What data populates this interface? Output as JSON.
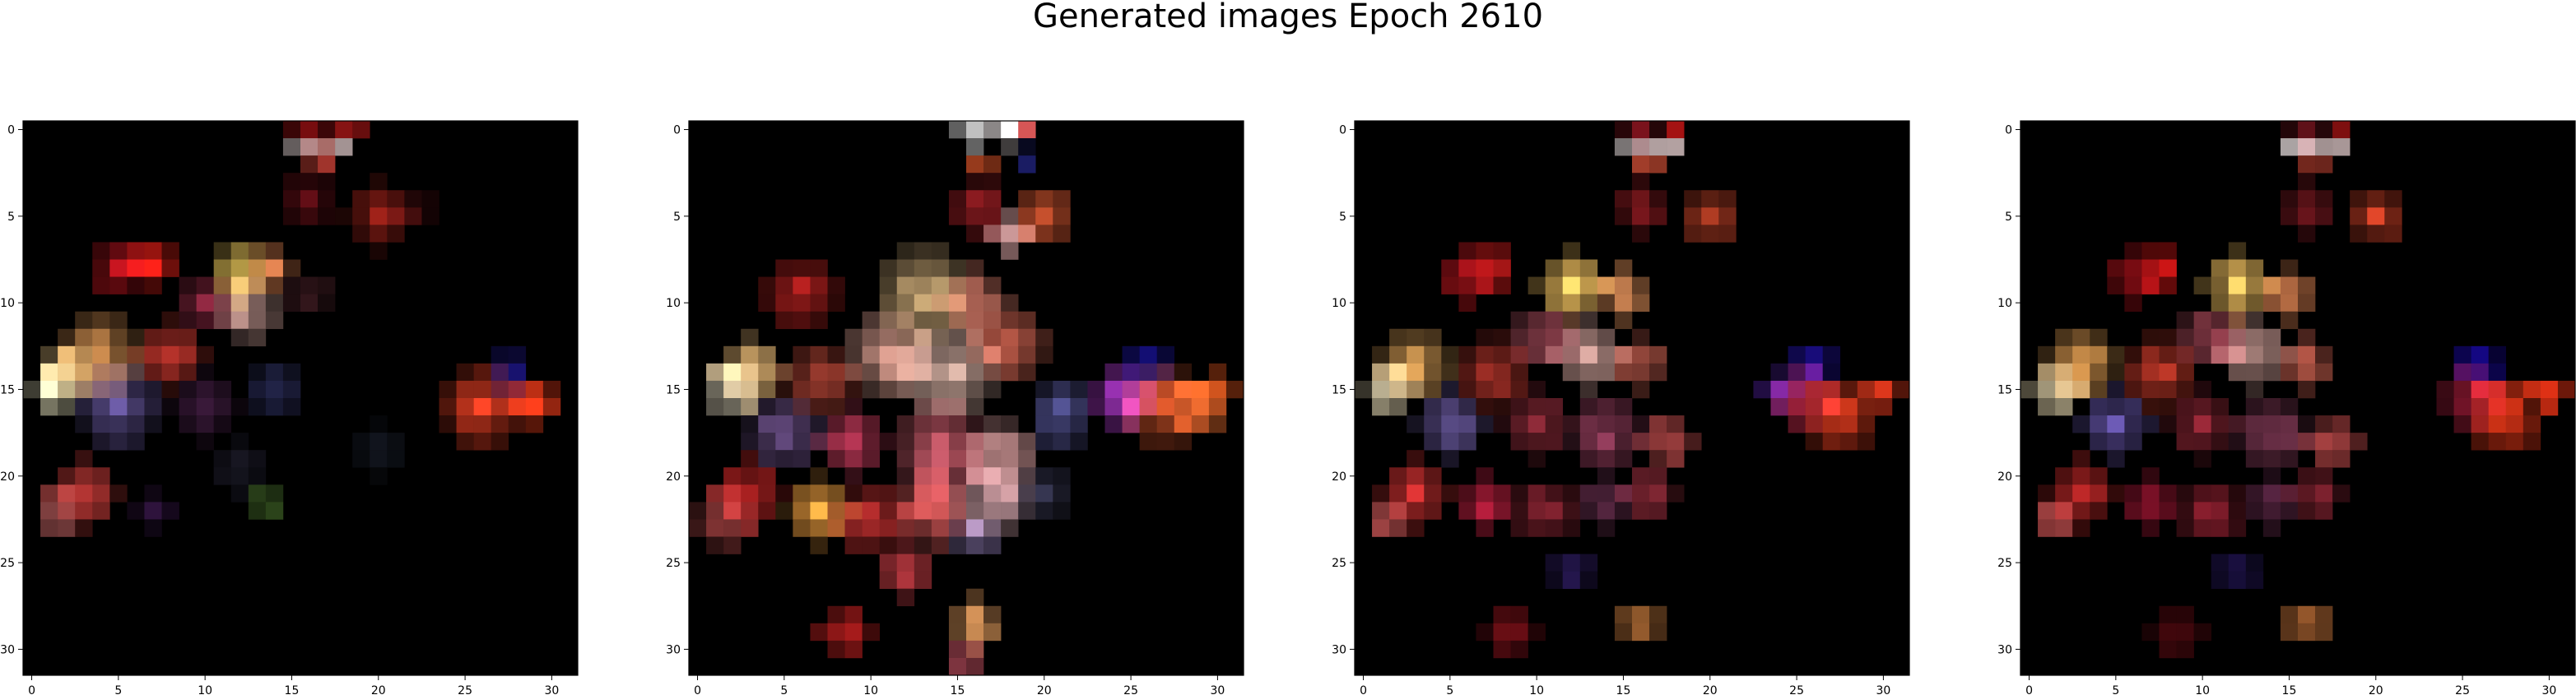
{
  "figure_title": "Generated images Epoch 2610",
  "chart_data": [
    {
      "type": "heatmap",
      "title": "",
      "grid": false,
      "xlim": [
        -0.5,
        31.5
      ],
      "ylim": [
        31.5,
        -0.5
      ],
      "xticks": [
        0,
        5,
        10,
        15,
        20,
        25,
        30
      ],
      "yticks": [
        0,
        5,
        10,
        15,
        20,
        25,
        30
      ],
      "size": [
        32,
        32
      ],
      "background": "#000000",
      "blobs": [
        {
          "x": 16.5,
          "y": 0.5,
          "r": 0.9,
          "color": "#8b0f12"
        },
        {
          "x": 18.8,
          "y": 0.2,
          "r": 0.6,
          "color": "#d81e1e"
        },
        {
          "x": 16.2,
          "y": 1.5,
          "r": 0.6,
          "color": "#f0e0e0"
        },
        {
          "x": 18.2,
          "y": 1.5,
          "r": 0.6,
          "color": "#f1d9d9"
        },
        {
          "x": 17.2,
          "y": 2.2,
          "r": 0.6,
          "color": "#d9473b"
        },
        {
          "x": 16.5,
          "y": 4.5,
          "r": 1.4,
          "color": "#5a0d14"
        },
        {
          "x": 20.5,
          "y": 5.5,
          "r": 1.8,
          "color": "#8a1d16"
        },
        {
          "x": 22.5,
          "y": 5.0,
          "r": 1.0,
          "color": "#3a0a0c"
        },
        {
          "x": 5.5,
          "y": 8.5,
          "r": 1.6,
          "color": "#a2111a"
        },
        {
          "x": 7.5,
          "y": 8.3,
          "r": 1.2,
          "color": "#f02018"
        },
        {
          "x": 12.5,
          "y": 8.8,
          "r": 1.6,
          "color": "#f3cf5e"
        },
        {
          "x": 14.2,
          "y": 8.7,
          "r": 1.2,
          "color": "#e48552"
        },
        {
          "x": 10.5,
          "y": 10.5,
          "r": 1.4,
          "color": "#7a2238"
        },
        {
          "x": 13.0,
          "y": 11.0,
          "r": 1.6,
          "color": "#d9a8a0"
        },
        {
          "x": 16.5,
          "y": 10.0,
          "r": 1.2,
          "color": "#451e25"
        },
        {
          "x": 4.5,
          "y": 13.5,
          "r": 2.2,
          "color": "#eba05a"
        },
        {
          "x": 2.5,
          "y": 14.5,
          "r": 1.6,
          "color": "#f3d08a"
        },
        {
          "x": 1.8,
          "y": 15.5,
          "r": 1.2,
          "color": "#f5f0c9"
        },
        {
          "x": 8.5,
          "y": 13.5,
          "r": 2.0,
          "color": "#c3362d"
        },
        {
          "x": 5.5,
          "y": 16.5,
          "r": 2.2,
          "color": "#6a5aa3"
        },
        {
          "x": 10.5,
          "y": 16.5,
          "r": 1.8,
          "color": "#3b1a3b"
        },
        {
          "x": 14.5,
          "y": 15.5,
          "r": 1.6,
          "color": "#262850"
        },
        {
          "x": 26.5,
          "y": 16.5,
          "r": 2.3,
          "color": "#e03d22"
        },
        {
          "x": 29.5,
          "y": 16.2,
          "r": 1.4,
          "color": "#f03c1a"
        },
        {
          "x": 28.0,
          "y": 14.5,
          "r": 1.0,
          "color": "#1c1580"
        },
        {
          "x": 3.5,
          "y": 21.5,
          "r": 2.0,
          "color": "#c53b38"
        },
        {
          "x": 2.0,
          "y": 22.8,
          "r": 1.2,
          "color": "#d46b6b"
        },
        {
          "x": 7.5,
          "y": 22.5,
          "r": 1.2,
          "color": "#281034"
        },
        {
          "x": 12.5,
          "y": 20.0,
          "r": 1.6,
          "color": "#1b1a28"
        },
        {
          "x": 14.0,
          "y": 22.0,
          "r": 0.6,
          "color": "#4f7a30"
        },
        {
          "x": 20.5,
          "y": 19.0,
          "r": 1.4,
          "color": "#141822"
        }
      ]
    },
    {
      "type": "heatmap",
      "title": "",
      "grid": false,
      "xlim": [
        -0.5,
        31.5
      ],
      "ylim": [
        31.5,
        -0.5
      ],
      "xticks": [
        0,
        5,
        10,
        15,
        20,
        25,
        30
      ],
      "yticks": [
        0,
        5,
        10,
        15,
        20,
        25,
        30
      ],
      "size": [
        32,
        32
      ],
      "background": "#000000",
      "blobs": [
        {
          "x": 16.5,
          "y": 0.5,
          "r": 0.8,
          "color": "#ffffff"
        },
        {
          "x": 18.5,
          "y": 0.5,
          "r": 0.8,
          "color": "#f4e8e8"
        },
        {
          "x": 19.5,
          "y": 0.2,
          "r": 0.5,
          "color": "#d01818"
        },
        {
          "x": 19.5,
          "y": 2.3,
          "r": 0.6,
          "color": "#1c1e6a"
        },
        {
          "x": 17.0,
          "y": 2.4,
          "r": 0.6,
          "color": "#ea5a2b"
        },
        {
          "x": 16.8,
          "y": 5.0,
          "r": 1.5,
          "color": "#9d1e24"
        },
        {
          "x": 20.5,
          "y": 5.5,
          "r": 1.6,
          "color": "#e05b33"
        },
        {
          "x": 18.5,
          "y": 6.5,
          "r": 1.2,
          "color": "#d9a3a3"
        },
        {
          "x": 6.5,
          "y": 10.0,
          "r": 2.0,
          "color": "#b82120"
        },
        {
          "x": 13.5,
          "y": 10.0,
          "r": 2.6,
          "color": "#efc88c"
        },
        {
          "x": 16.5,
          "y": 10.5,
          "r": 2.0,
          "color": "#d97c6a"
        },
        {
          "x": 11.5,
          "y": 13.5,
          "r": 2.4,
          "color": "#e8a898"
        },
        {
          "x": 15.0,
          "y": 14.5,
          "r": 2.8,
          "color": "#d9b3a6"
        },
        {
          "x": 18.5,
          "y": 13.0,
          "r": 2.0,
          "color": "#e8705a"
        },
        {
          "x": 3.5,
          "y": 14.5,
          "r": 2.0,
          "color": "#f0c07a"
        },
        {
          "x": 2.5,
          "y": 15.5,
          "r": 1.5,
          "color": "#f8eed2"
        },
        {
          "x": 7.5,
          "y": 15.0,
          "r": 2.0,
          "color": "#c24a3a"
        },
        {
          "x": 5.5,
          "y": 18.0,
          "r": 2.0,
          "color": "#7a5a9a"
        },
        {
          "x": 9.5,
          "y": 18.5,
          "r": 2.0,
          "color": "#c23a5a"
        },
        {
          "x": 14.5,
          "y": 19.0,
          "r": 2.6,
          "color": "#d36070"
        },
        {
          "x": 18.0,
          "y": 19.5,
          "r": 2.2,
          "color": "#e8a8a8"
        },
        {
          "x": 21.5,
          "y": 17.0,
          "r": 1.8,
          "color": "#5a5aa0"
        },
        {
          "x": 25.0,
          "y": 16.0,
          "r": 1.6,
          "color": "#b23ad0"
        },
        {
          "x": 27.5,
          "y": 16.5,
          "r": 2.2,
          "color": "#f06030"
        },
        {
          "x": 29.5,
          "y": 16.5,
          "r": 1.6,
          "color": "#f07030"
        },
        {
          "x": 26.5,
          "y": 14.0,
          "r": 1.0,
          "color": "#1a14a0"
        },
        {
          "x": 30.5,
          "y": 15.5,
          "r": 0.8,
          "color": "#ff6020"
        },
        {
          "x": 3.5,
          "y": 21.5,
          "r": 2.0,
          "color": "#d02828"
        },
        {
          "x": 2.0,
          "y": 23.0,
          "r": 1.4,
          "color": "#e05a5a"
        },
        {
          "x": 7.5,
          "y": 22.5,
          "r": 1.8,
          "color": "#f0a040"
        },
        {
          "x": 10.5,
          "y": 23.0,
          "r": 2.0,
          "color": "#c23030"
        },
        {
          "x": 14.0,
          "y": 22.5,
          "r": 2.2,
          "color": "#e86060"
        },
        {
          "x": 17.5,
          "y": 22.0,
          "r": 2.0,
          "color": "#d8a8b0"
        },
        {
          "x": 20.5,
          "y": 21.5,
          "r": 1.4,
          "color": "#303048"
        },
        {
          "x": 12.5,
          "y": 26.0,
          "r": 1.6,
          "color": "#d04048"
        },
        {
          "x": 16.5,
          "y": 24.0,
          "r": 1.2,
          "color": "#7a6a9a"
        },
        {
          "x": 9.0,
          "y": 29.5,
          "r": 1.6,
          "color": "#c02020"
        },
        {
          "x": 16.5,
          "y": 29.0,
          "r": 1.5,
          "color": "#e8a060"
        },
        {
          "x": 16.0,
          "y": 31.0,
          "r": 0.8,
          "color": "#c05060"
        }
      ]
    },
    {
      "type": "heatmap",
      "title": "",
      "grid": false,
      "xlim": [
        -0.5,
        31.5
      ],
      "ylim": [
        31.5,
        -0.5
      ],
      "xticks": [
        0,
        5,
        10,
        15,
        20,
        25,
        30
      ],
      "yticks": [
        0,
        5,
        10,
        15,
        20,
        25,
        30
      ],
      "size": [
        32,
        32
      ],
      "background": "#000000",
      "blobs": [
        {
          "x": 16.5,
          "y": 0.5,
          "r": 0.8,
          "color": "#6a1018"
        },
        {
          "x": 18.5,
          "y": 0.2,
          "r": 0.5,
          "color": "#d81818"
        },
        {
          "x": 16.0,
          "y": 1.5,
          "r": 0.6,
          "color": "#f6ecec"
        },
        {
          "x": 18.0,
          "y": 1.5,
          "r": 0.6,
          "color": "#f2dada"
        },
        {
          "x": 17.0,
          "y": 2.3,
          "r": 0.6,
          "color": "#e0553a"
        },
        {
          "x": 16.5,
          "y": 5.0,
          "r": 1.4,
          "color": "#8a1a20"
        },
        {
          "x": 20.5,
          "y": 5.5,
          "r": 1.6,
          "color": "#c84428"
        },
        {
          "x": 6.5,
          "y": 9.0,
          "r": 1.6,
          "color": "#b0141c"
        },
        {
          "x": 8.0,
          "y": 8.5,
          "r": 1.0,
          "color": "#f02020"
        },
        {
          "x": 12.5,
          "y": 9.5,
          "r": 2.0,
          "color": "#f0c060"
        },
        {
          "x": 15.5,
          "y": 10.0,
          "r": 1.6,
          "color": "#e0905a"
        },
        {
          "x": 11.0,
          "y": 12.5,
          "r": 1.8,
          "color": "#b05060"
        },
        {
          "x": 13.5,
          "y": 13.5,
          "r": 2.0,
          "color": "#d8a8a0"
        },
        {
          "x": 16.5,
          "y": 14.0,
          "r": 1.6,
          "color": "#c86050"
        },
        {
          "x": 3.5,
          "y": 14.0,
          "r": 2.0,
          "color": "#f0b060"
        },
        {
          "x": 2.0,
          "y": 15.5,
          "r": 1.4,
          "color": "#f6e8c0"
        },
        {
          "x": 8.0,
          "y": 14.5,
          "r": 2.0,
          "color": "#c83a30"
        },
        {
          "x": 5.5,
          "y": 17.5,
          "r": 2.0,
          "color": "#6a5aa0"
        },
        {
          "x": 10.5,
          "y": 17.5,
          "r": 1.8,
          "color": "#a03040"
        },
        {
          "x": 14.5,
          "y": 18.0,
          "r": 2.0,
          "color": "#9a4060"
        },
        {
          "x": 18.0,
          "y": 18.5,
          "r": 1.6,
          "color": "#c85050"
        },
        {
          "x": 26.0,
          "y": 16.0,
          "r": 1.8,
          "color": "#c02848"
        },
        {
          "x": 28.0,
          "y": 17.0,
          "r": 2.2,
          "color": "#f04020"
        },
        {
          "x": 30.5,
          "y": 15.8,
          "r": 1.0,
          "color": "#ff4020"
        },
        {
          "x": 26.5,
          "y": 14.0,
          "r": 1.2,
          "color": "#2010a0"
        },
        {
          "x": 24.5,
          "y": 15.5,
          "r": 0.8,
          "color": "#5020a0"
        },
        {
          "x": 3.5,
          "y": 21.5,
          "r": 2.0,
          "color": "#c83030"
        },
        {
          "x": 2.0,
          "y": 23.0,
          "r": 1.2,
          "color": "#e06060"
        },
        {
          "x": 7.5,
          "y": 22.0,
          "r": 1.6,
          "color": "#c02040"
        },
        {
          "x": 11.0,
          "y": 22.5,
          "r": 1.8,
          "color": "#9a2838"
        },
        {
          "x": 14.5,
          "y": 22.0,
          "r": 1.6,
          "color": "#6a3050"
        },
        {
          "x": 17.0,
          "y": 21.5,
          "r": 1.4,
          "color": "#a03040"
        },
        {
          "x": 12.5,
          "y": 26.0,
          "r": 1.2,
          "color": "#2a1a5a"
        },
        {
          "x": 9.0,
          "y": 29.5,
          "r": 1.4,
          "color": "#7a1018"
        },
        {
          "x": 16.5,
          "y": 29.0,
          "r": 1.2,
          "color": "#d08040"
        }
      ]
    },
    {
      "type": "heatmap",
      "title": "",
      "grid": false,
      "xlim": [
        -0.5,
        31.5
      ],
      "ylim": [
        31.5,
        -0.5
      ],
      "xticks": [
        0,
        5,
        10,
        15,
        20,
        25,
        30
      ],
      "yticks": [
        0,
        5,
        10,
        15,
        20,
        25,
        30
      ],
      "size": [
        32,
        32
      ],
      "background": "#000000",
      "blobs": [
        {
          "x": 16.5,
          "y": 0.5,
          "r": 0.8,
          "color": "#5a1018"
        },
        {
          "x": 18.5,
          "y": 0.2,
          "r": 0.5,
          "color": "#d01818"
        },
        {
          "x": 16.0,
          "y": 1.5,
          "r": 0.6,
          "color": "#f6ecec"
        },
        {
          "x": 18.0,
          "y": 1.5,
          "r": 0.6,
          "color": "#f0d8d8"
        },
        {
          "x": 17.0,
          "y": 2.3,
          "r": 0.6,
          "color": "#d84a38"
        },
        {
          "x": 16.5,
          "y": 5.0,
          "r": 1.4,
          "color": "#7a1820"
        },
        {
          "x": 20.5,
          "y": 5.5,
          "r": 1.6,
          "color": "#c03c24"
        },
        {
          "x": 6.5,
          "y": 9.0,
          "r": 1.6,
          "color": "#a01018"
        },
        {
          "x": 8.0,
          "y": 8.5,
          "r": 1.0,
          "color": "#e81818"
        },
        {
          "x": 12.5,
          "y": 9.5,
          "r": 2.0,
          "color": "#f0c060"
        },
        {
          "x": 15.5,
          "y": 10.0,
          "r": 1.6,
          "color": "#d88050"
        },
        {
          "x": 11.0,
          "y": 12.5,
          "r": 1.8,
          "color": "#a84858"
        },
        {
          "x": 13.5,
          "y": 13.5,
          "r": 2.0,
          "color": "#d0a098"
        },
        {
          "x": 16.5,
          "y": 14.0,
          "r": 1.6,
          "color": "#b85848"
        },
        {
          "x": 3.5,
          "y": 14.0,
          "r": 2.0,
          "color": "#f0a858"
        },
        {
          "x": 2.0,
          "y": 15.5,
          "r": 1.4,
          "color": "#f4e4b8"
        },
        {
          "x": 8.0,
          "y": 14.5,
          "r": 2.0,
          "color": "#c03828"
        },
        {
          "x": 5.5,
          "y": 17.5,
          "r": 2.0,
          "color": "#6050a0"
        },
        {
          "x": 10.5,
          "y": 17.5,
          "r": 1.8,
          "color": "#982838"
        },
        {
          "x": 14.5,
          "y": 18.0,
          "r": 2.0,
          "color": "#904060"
        },
        {
          "x": 18.0,
          "y": 18.5,
          "r": 1.6,
          "color": "#b84848"
        },
        {
          "x": 26.0,
          "y": 16.0,
          "r": 1.8,
          "color": "#b82040"
        },
        {
          "x": 28.0,
          "y": 17.0,
          "r": 2.2,
          "color": "#e83818"
        },
        {
          "x": 30.5,
          "y": 15.8,
          "r": 1.0,
          "color": "#ff3818"
        },
        {
          "x": 26.5,
          "y": 14.0,
          "r": 1.2,
          "color": "#1808a0"
        },
        {
          "x": 3.5,
          "y": 21.5,
          "r": 2.0,
          "color": "#c02828"
        },
        {
          "x": 2.0,
          "y": 23.0,
          "r": 1.2,
          "color": "#d85858"
        },
        {
          "x": 7.5,
          "y": 22.0,
          "r": 1.6,
          "color": "#b01838"
        },
        {
          "x": 11.0,
          "y": 22.5,
          "r": 1.8,
          "color": "#902030"
        },
        {
          "x": 14.5,
          "y": 22.0,
          "r": 1.6,
          "color": "#602848"
        },
        {
          "x": 17.0,
          "y": 21.5,
          "r": 1.4,
          "color": "#982838"
        },
        {
          "x": 12.5,
          "y": 26.0,
          "r": 1.2,
          "color": "#201450"
        },
        {
          "x": 9.0,
          "y": 29.5,
          "r": 1.4,
          "color": "#6a0c14"
        },
        {
          "x": 16.5,
          "y": 29.0,
          "r": 1.2,
          "color": "#c07038"
        }
      ]
    }
  ]
}
